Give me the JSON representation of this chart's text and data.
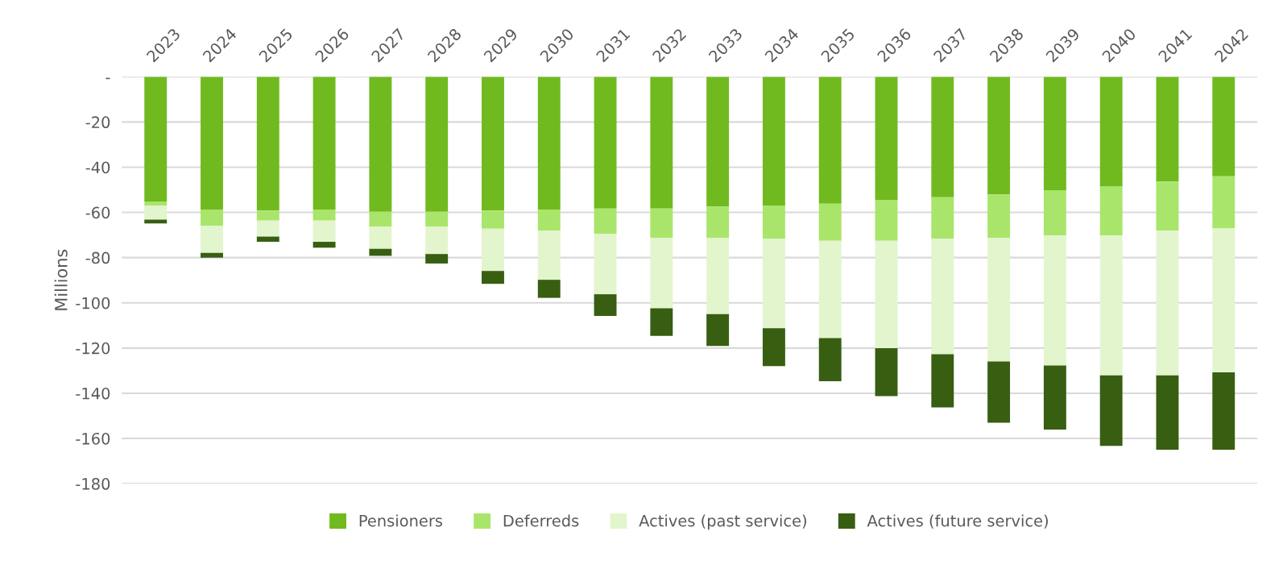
{
  "chart_data": {
    "type": "bar",
    "stacked": true,
    "ylabel": "Millions",
    "categories": [
      "2023",
      "2024",
      "2025",
      "2026",
      "2027",
      "2028",
      "2029",
      "2030",
      "2031",
      "2032",
      "2033",
      "2034",
      "2035",
      "2036",
      "2037",
      "2038",
      "2039",
      "2040",
      "2041",
      "2042"
    ],
    "series": [
      {
        "name": "Pensioners",
        "color": "#70ba1f",
        "values": [
          -55.2,
          -58.7,
          -59.2,
          -58.7,
          -59.7,
          -59.7,
          -59.2,
          -58.7,
          -58.3,
          -58.3,
          -57.4,
          -56.9,
          -56.1,
          -54.6,
          -53.3,
          -52.0,
          -50.2,
          -48.4,
          -46.3,
          -44.0
        ]
      },
      {
        "name": "Deferreds",
        "color": "#a9e56a",
        "values": [
          -1.8,
          -7.2,
          -4.4,
          -4.9,
          -6.6,
          -6.6,
          -8.0,
          -9.4,
          -11.1,
          -12.9,
          -13.8,
          -14.7,
          -16.4,
          -17.9,
          -18.3,
          -19.2,
          -20.0,
          -21.8,
          -21.7,
          -23.1
        ]
      },
      {
        "name": "Actives (past service)",
        "color": "#e2f5cd",
        "values": [
          -6.2,
          -12.0,
          -7.1,
          -9.4,
          -9.8,
          -12.1,
          -18.7,
          -21.7,
          -26.8,
          -31.2,
          -33.8,
          -39.6,
          -43.1,
          -47.6,
          -51.1,
          -54.7,
          -57.5,
          -61.9,
          -64.1,
          -63.7
        ]
      },
      {
        "name": "Actives (future service)",
        "color": "#385e12",
        "values": [
          -1.7,
          -2.1,
          -2.3,
          -2.6,
          -3.1,
          -4.2,
          -5.7,
          -8.0,
          -9.6,
          -12.2,
          -14.1,
          -16.8,
          -19.1,
          -21.2,
          -23.6,
          -27.1,
          -28.4,
          -31.2,
          -32.9,
          -34.2
        ]
      }
    ],
    "ylim": [
      -180,
      0
    ],
    "yticks": [
      {
        "value": 0,
        "label": "-"
      },
      -20,
      -40,
      -60,
      -80,
      -100,
      -120,
      -140,
      -160,
      -180
    ],
    "grid": "y",
    "legend": "bottom"
  }
}
